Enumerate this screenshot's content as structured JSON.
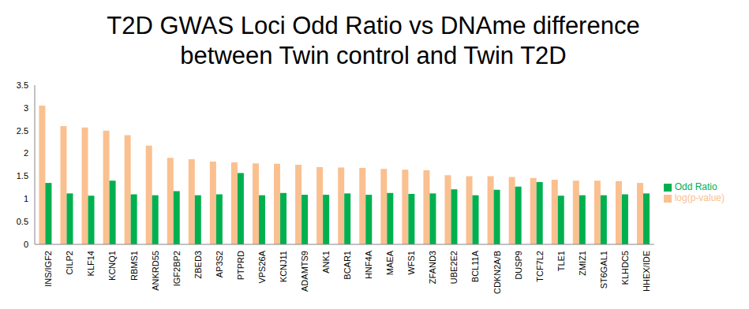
{
  "chart_data": {
    "type": "bar",
    "title": [
      "T2D GWAS Loci Odd Ratio vs DNAme difference",
      "between Twin control and Twin T2D"
    ],
    "categories": [
      "INS/IGF2",
      "CILP2",
      "KLF14",
      "KCNQ1",
      "RBMS1",
      "ANKRD55",
      "IGF2BP2",
      "ZBED3",
      "AP3S2",
      "PTPRD",
      "VPS26A",
      "KCNJ11",
      "ADAMTS9",
      "ANK1",
      "BCAR1",
      "HNF4A",
      "MAEA",
      "WFS1",
      "ZFAND3",
      "UBE2E2",
      "BCL11A",
      "CDKN2A/B",
      "DUSP9",
      "TCF7L2",
      "TLE1",
      "ZMIZ1",
      "ST6GAL1",
      "KLHDC5",
      "HHEX/IDE"
    ],
    "series": [
      {
        "name": "log(p-value)",
        "color": "#fac090",
        "values": [
          3.05,
          2.6,
          2.57,
          2.5,
          2.4,
          2.17,
          1.9,
          1.87,
          1.82,
          1.8,
          1.78,
          1.77,
          1.75,
          1.7,
          1.69,
          1.68,
          1.66,
          1.64,
          1.63,
          1.52,
          1.5,
          1.5,
          1.48,
          1.46,
          1.42,
          1.4,
          1.4,
          1.39,
          1.35
        ]
      },
      {
        "name": "Odd Ratio",
        "color": "#00b050",
        "values": [
          1.35,
          1.12,
          1.07,
          1.4,
          1.1,
          1.08,
          1.17,
          1.08,
          1.1,
          1.57,
          1.08,
          1.13,
          1.09,
          1.09,
          1.12,
          1.09,
          1.13,
          1.11,
          1.12,
          1.21,
          1.08,
          1.2,
          1.27,
          1.37,
          1.07,
          1.08,
          1.08,
          1.1,
          1.12
        ]
      }
    ],
    "ylim": [
      0,
      3.5
    ],
    "yticks": [
      0,
      0.5,
      1,
      1.5,
      2,
      2.5,
      3,
      3.5
    ],
    "grid": false,
    "legend": "right"
  }
}
